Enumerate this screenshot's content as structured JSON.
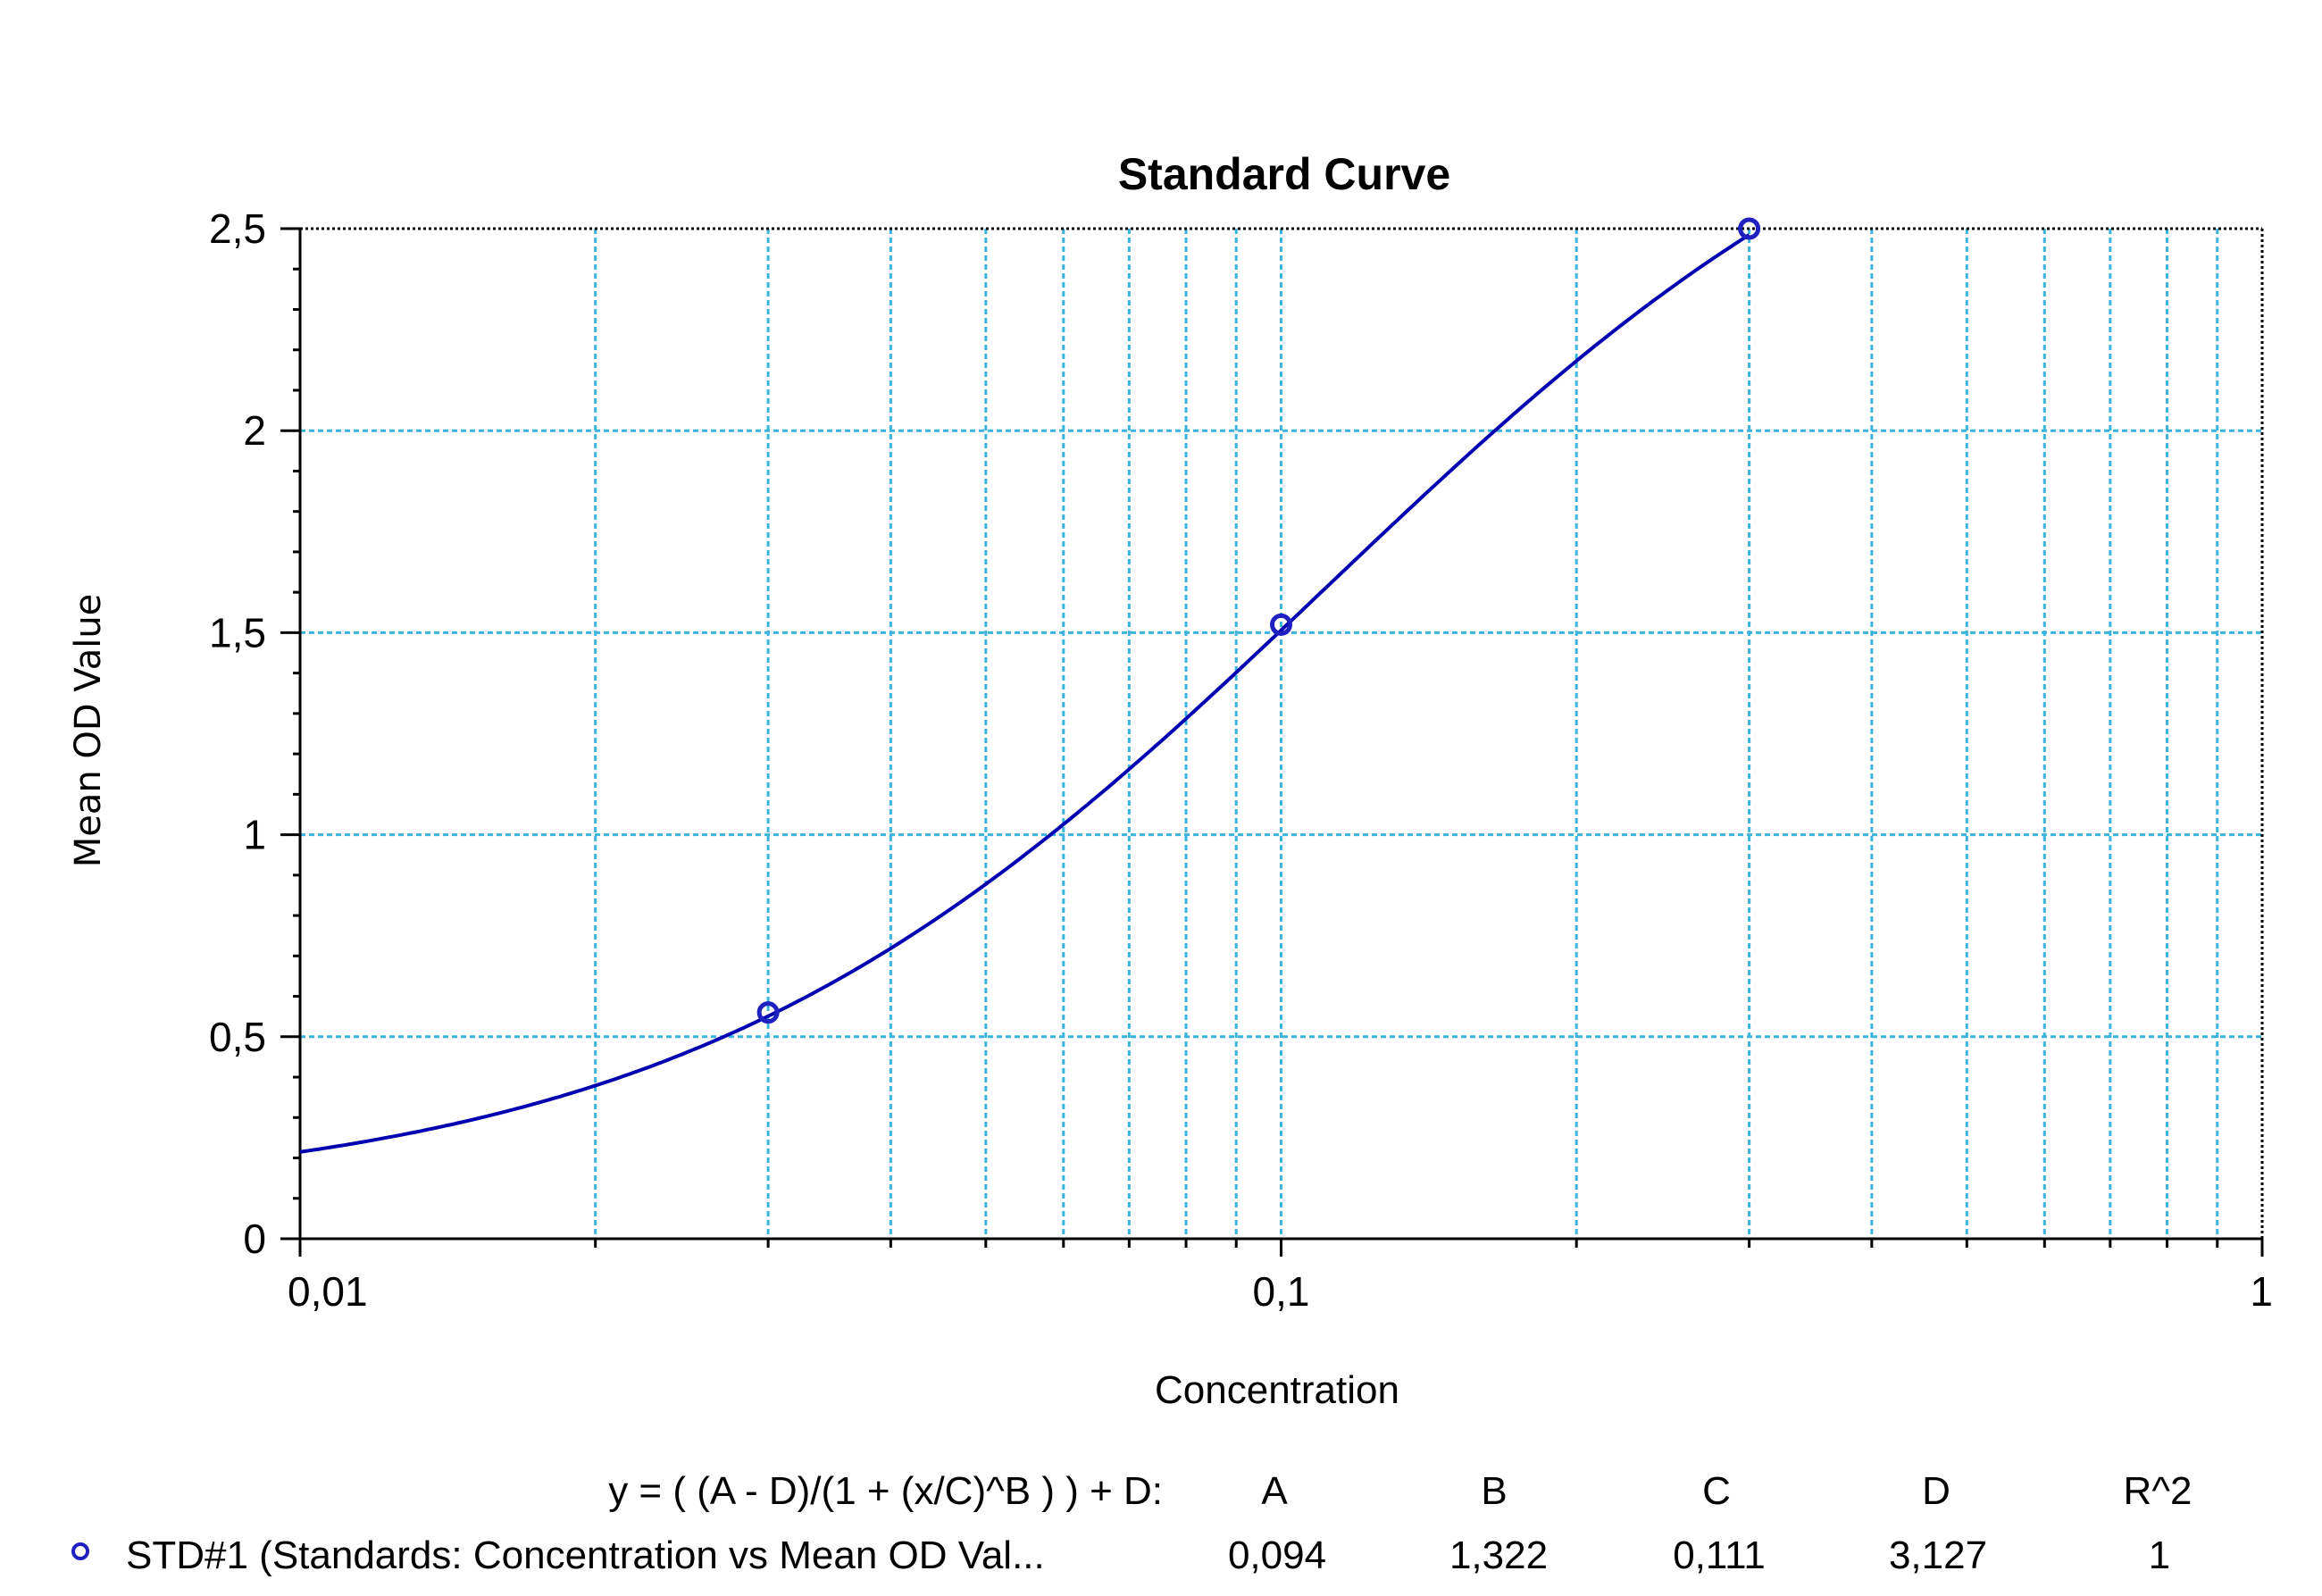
{
  "chart_data": {
    "type": "scatter",
    "title": "Standard Curve",
    "xlabel": "Concentration",
    "ylabel": "Mean OD Value",
    "x_scale": "log",
    "xlim": [
      0.01,
      1
    ],
    "ylim": [
      0,
      2.5
    ],
    "x_ticks": [
      "0,01",
      "0,1",
      "1"
    ],
    "y_ticks": [
      "0",
      "0,5",
      "1",
      "1,5",
      "2",
      "2,5"
    ],
    "grid": true,
    "series": [
      {
        "name": "STD#1 (Standards: Concentration vs Mean OD Val...",
        "points": [
          {
            "x": 0.03,
            "y": 0.56
          },
          {
            "x": 0.1,
            "y": 1.52
          },
          {
            "x": 0.3,
            "y": 2.5
          }
        ],
        "fit": {
          "equation": "y = ( (A - D)/(1 + (x/C)^B ) ) + D:",
          "A": 0.094,
          "B": 1.322,
          "C": 0.111,
          "D": 3.127,
          "x_range": [
            0.01,
            0.3
          ]
        }
      }
    ],
    "colors": {
      "series": "#0000b0",
      "grid": "#3ab4dc",
      "axis": "#000000"
    }
  },
  "fit_table": {
    "equation": "y = ( (A - D)/(1 + (x/C)^B ) ) + D:",
    "headers": [
      "A",
      "B",
      "C",
      "D",
      "R^2"
    ],
    "legend_icon": "circle-marker-icon",
    "row_label": "STD#1 (Standards: Concentration vs Mean OD Val...",
    "row_values": [
      "0,094",
      "1,322",
      "0,111",
      "3,127",
      "1"
    ]
  }
}
